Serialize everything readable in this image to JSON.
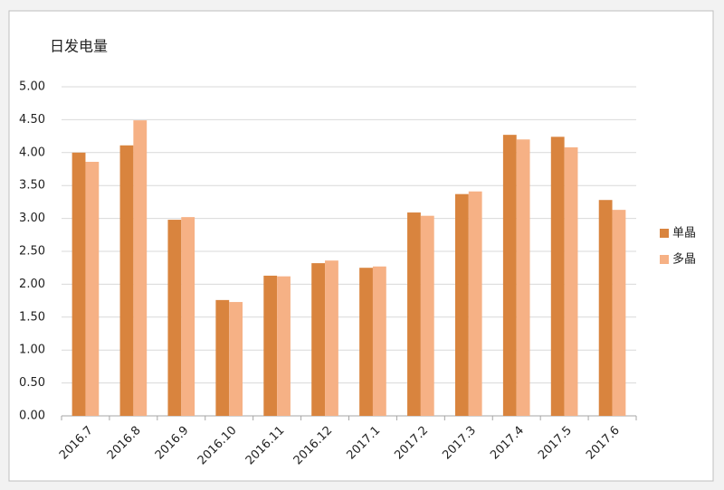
{
  "chart_data": {
    "type": "bar",
    "title": "日发电量",
    "categories": [
      "2016.7",
      "2016.8",
      "2016.9",
      "2016.10",
      "2016.11",
      "2016.12",
      "2017.1",
      "2017.2",
      "2017.3",
      "2017.4",
      "2017.5",
      "2017.6"
    ],
    "series": [
      {
        "name": "单晶",
        "color": "#d9843e",
        "values": [
          4.0,
          4.11,
          2.98,
          1.76,
          2.13,
          2.32,
          2.25,
          3.09,
          3.37,
          4.27,
          4.24,
          3.28
        ]
      },
      {
        "name": "多晶",
        "color": "#f6b185",
        "values": [
          3.86,
          4.49,
          3.02,
          1.73,
          2.12,
          2.36,
          2.27,
          3.04,
          3.41,
          4.2,
          4.08,
          3.13
        ]
      }
    ],
    "ylim": [
      0,
      5
    ],
    "yticks": [
      {
        "value": 0,
        "label": "0.00"
      },
      {
        "value": 0.5,
        "label": "0.50"
      },
      {
        "value": 1,
        "label": "1.00"
      },
      {
        "value": 1.5,
        "label": "1.50"
      },
      {
        "value": 2,
        "label": "2.00"
      },
      {
        "value": 2.5,
        "label": "2.50"
      },
      {
        "value": 3,
        "label": "3.00"
      },
      {
        "value": 3.5,
        "label": "3.50"
      },
      {
        "value": 4,
        "label": "4.00"
      },
      {
        "value": 4.5,
        "label": "4.50"
      },
      {
        "value": 5,
        "label": "5.00"
      }
    ],
    "grid": true,
    "legend": "right"
  }
}
